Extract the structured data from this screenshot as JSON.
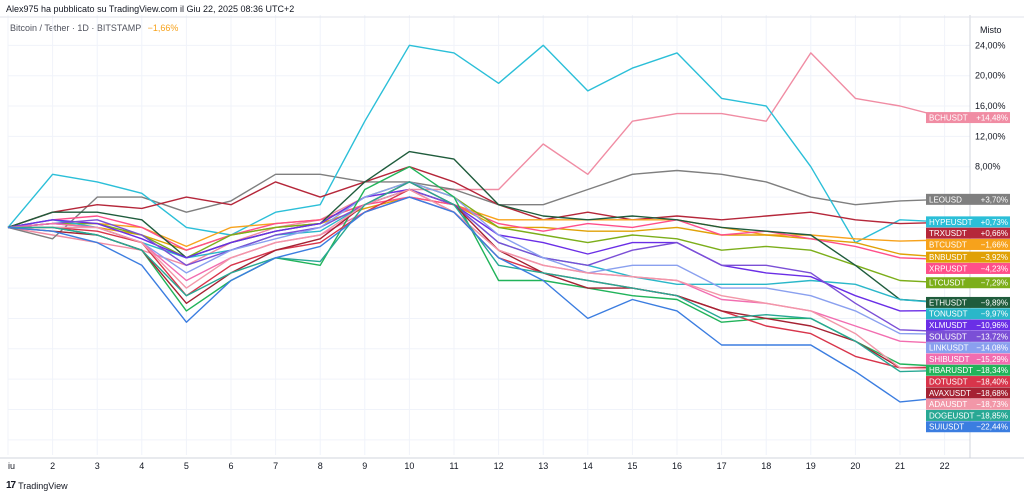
{
  "header": {
    "title": "Alex975 ha pubblicato su TradingView.com il Giu 22, 2025 08:36 UTC+2"
  },
  "symbol": {
    "name": "Bitcoin / Tether · 1D · BITSTAMP",
    "change": "−1,66%"
  },
  "scale": {
    "label": "Misto"
  },
  "footer": {
    "brand": "TradingView",
    "mark": "17"
  },
  "chart_data": {
    "type": "line",
    "title": "Bitcoin / Tether · 1D · BITSTAMP",
    "x": [
      "iu",
      "2",
      "3",
      "4",
      "5",
      "6",
      "7",
      "8",
      "9",
      "10",
      "11",
      "12",
      "13",
      "14",
      "15",
      "16",
      "17",
      "18",
      "19",
      "20",
      "21",
      "22"
    ],
    "ylim": [
      -30,
      28
    ],
    "yticks": [
      24,
      20,
      16,
      12,
      8
    ],
    "ytick_labels": [
      "24,00%",
      "20,00%",
      "16,00%",
      "12,00%",
      "8,00%"
    ],
    "series": [
      {
        "name": "BCHUSDT",
        "label": "+14,48%",
        "color": "#f08ca3",
        "values": [
          0,
          -1,
          -2,
          -3,
          -5,
          -2,
          0,
          1,
          4,
          5,
          5,
          5,
          11,
          7,
          14,
          15,
          15,
          14,
          23,
          17,
          16,
          14.48
        ]
      },
      {
        "name": "LEOUSD",
        "label": "+3,70%",
        "color": "#7f7f7f",
        "values": [
          0,
          -1.5,
          4,
          4,
          2,
          3.5,
          7,
          7,
          6,
          6,
          5,
          3,
          3,
          5,
          7,
          7.5,
          7,
          6,
          4,
          3,
          3.5,
          3.7
        ]
      },
      {
        "name": "HYPEUSDT",
        "label": "+0,73%",
        "color": "#2bbfd8",
        "values": [
          0,
          7,
          6,
          4.5,
          0,
          -1,
          2,
          3,
          14,
          24,
          23,
          19,
          24,
          18,
          21,
          23,
          17,
          16,
          8,
          -2,
          1,
          0.73
        ]
      },
      {
        "name": "TRXUSDT",
        "label": "+0,66%",
        "color": "#b5273a",
        "values": [
          0,
          2,
          3,
          2.5,
          4,
          3,
          6,
          4,
          6,
          8,
          6,
          3,
          1,
          2,
          1,
          1.5,
          1,
          1.5,
          2,
          1,
          0.5,
          0.66
        ]
      },
      {
        "name": "BTCUSDT",
        "label": "−1,66%",
        "color": "#f7a21b",
        "values": [
          0,
          0.5,
          0.5,
          0,
          -2.5,
          0,
          0.5,
          1,
          3,
          5,
          3,
          1,
          1,
          1,
          1,
          1,
          0,
          -1,
          -1,
          -1.5,
          -1.8,
          -1.66
        ]
      },
      {
        "name": "BNBUSDT",
        "label": "−3,92%",
        "color": "#e0a106",
        "values": [
          0,
          0.5,
          0,
          -1,
          -3,
          -1,
          0,
          0.5,
          2.5,
          4,
          3,
          0,
          0,
          -0.5,
          -0.5,
          0,
          -1,
          -1,
          -1.5,
          -2,
          -3.5,
          -3.92
        ]
      },
      {
        "name": "XRPUSDT",
        "label": "−4,23%",
        "color": "#ff4f8a",
        "values": [
          0,
          1,
          1.5,
          0,
          -3,
          -1,
          0.5,
          1,
          3,
          4,
          3,
          0.5,
          -0.5,
          0.5,
          0,
          1,
          -1,
          -0.5,
          -1.5,
          -2.5,
          -4,
          -4.23
        ]
      },
      {
        "name": "LTCUSDT",
        "label": "−7,29%",
        "color": "#7cae1a",
        "values": [
          0,
          0.5,
          0.5,
          -1,
          -4,
          -1,
          0,
          0.5,
          4,
          6,
          4,
          0,
          -1,
          -2,
          -1,
          -1.5,
          -3,
          -2.5,
          -3,
          -5,
          -7,
          -7.29
        ]
      },
      {
        "name": "ETHUSDT",
        "label": "−9,89%",
        "color": "#1f5c3c",
        "values": [
          0,
          2,
          2,
          1,
          -4,
          -2,
          -0.5,
          0.5,
          6,
          10,
          9,
          3,
          1.5,
          1,
          1.5,
          1,
          0,
          -0.5,
          -1,
          -5,
          -9.5,
          -9.89
        ]
      },
      {
        "name": "TONUSDT",
        "label": "−9,97%",
        "color": "#2ab7c9",
        "values": [
          0,
          1,
          0,
          -2,
          -4,
          -3,
          -1,
          -0.5,
          3,
          5,
          3,
          -2,
          -4,
          -5,
          -6.5,
          -7.5,
          -7.5,
          -7.5,
          -7,
          -7.5,
          -9.5,
          -9.97
        ]
      },
      {
        "name": "XLMUSDT",
        "label": "−10,96%",
        "color": "#6a2ee6",
        "values": [
          0,
          1,
          0.5,
          -1.5,
          -4,
          -2,
          -0.5,
          0.5,
          4,
          5,
          3,
          -1,
          -2,
          -3.5,
          -2,
          -2,
          -5,
          -6,
          -6.5,
          -9,
          -11,
          -10.96
        ]
      },
      {
        "name": "SOLUSDT",
        "label": "−13,72%",
        "color": "#7b4fd6",
        "values": [
          0,
          0.5,
          1,
          -1,
          -5,
          -3,
          -1,
          0,
          3,
          5,
          3,
          -2,
          -4,
          -5,
          -3,
          -2,
          -5,
          -5,
          -6,
          -10,
          -13.5,
          -13.72
        ]
      },
      {
        "name": "LINKUSDT",
        "label": "−14,08%",
        "color": "#8aa0ef",
        "values": [
          0,
          0,
          0,
          -2,
          -6,
          -3,
          -1.5,
          0,
          4,
          6,
          4,
          -1,
          -4,
          -6,
          -5,
          -5,
          -8,
          -8,
          -9,
          -11,
          -14,
          -14.08
        ]
      },
      {
        "name": "SHIBUSDT",
        "label": "−15,29%",
        "color": "#f26db0",
        "values": [
          0,
          0.5,
          0,
          -2,
          -7,
          -4,
          -2,
          -1,
          2,
          4,
          2,
          -3,
          -5,
          -6,
          -6.5,
          -7,
          -9.5,
          -10,
          -11,
          -13,
          -15,
          -15.29
        ]
      },
      {
        "name": "HBARUSDT",
        "label": "−18,34%",
        "color": "#21b35a",
        "values": [
          0,
          0,
          -1,
          -3,
          -11,
          -7,
          -4,
          -5,
          5,
          8,
          4,
          -7,
          -7,
          -8,
          -9,
          -9.5,
          -12.5,
          -12,
          -12,
          -15,
          -18,
          -18.34
        ]
      },
      {
        "name": "DOTUSDT",
        "label": "−18,40%",
        "color": "#d8354b",
        "values": [
          0,
          0,
          -0.5,
          -2,
          -9,
          -5,
          -3,
          -2,
          2,
          5,
          2,
          -4,
          -6,
          -7,
          -8,
          -9,
          -11,
          -13,
          -14,
          -17,
          -18.5,
          -18.4
        ]
      },
      {
        "name": "AVAXUSDT",
        "label": "−18,68%",
        "color": "#a52233",
        "values": [
          0,
          -0.5,
          -1,
          -3,
          -10,
          -6,
          -3,
          -1.5,
          3,
          6,
          3,
          -3,
          -6,
          -8,
          -8,
          -9,
          -11,
          -12,
          -13,
          -15,
          -18.5,
          -18.68
        ]
      },
      {
        "name": "ADAUSDT",
        "label": "−18,73%",
        "color": "#f297a8",
        "values": [
          0,
          0,
          0,
          -2,
          -8,
          -4,
          -2,
          -1,
          3,
          5,
          2,
          -3,
          -5,
          -6,
          -6.5,
          -7,
          -9,
          -10,
          -11,
          -14,
          -18.5,
          -18.73
        ]
      },
      {
        "name": "DOGEUSDT",
        "label": "−18,85%",
        "color": "#28a894",
        "values": [
          0,
          0,
          -1,
          -3,
          -9,
          -6,
          -4,
          -4.5,
          3,
          6,
          3,
          -5,
          -6,
          -7,
          -8,
          -9,
          -12,
          -11.5,
          -12,
          -15,
          -19,
          -18.85
        ]
      },
      {
        "name": "SUIUSDT",
        "label": "−22,44%",
        "color": "#3b7de0",
        "values": [
          0,
          -0.5,
          -2,
          -5,
          -12.5,
          -7,
          -4,
          -2.5,
          2,
          4,
          2,
          -4,
          -7,
          -12,
          -9.5,
          -11,
          -15.5,
          -15.5,
          -15.5,
          -19,
          -23,
          -22.44
        ]
      }
    ]
  }
}
